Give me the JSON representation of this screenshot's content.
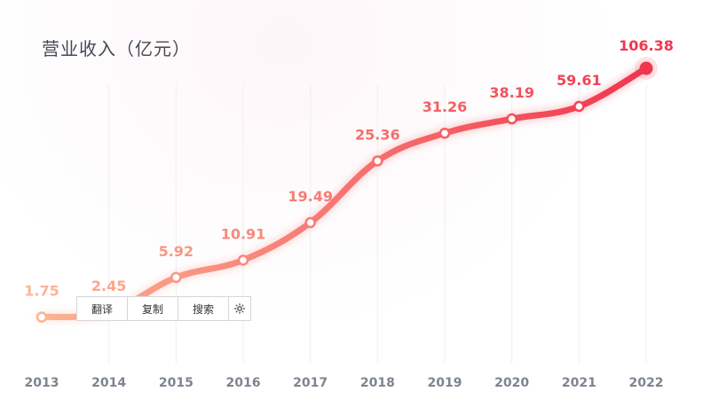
{
  "chart_data": {
    "type": "line",
    "title": "营业收入（亿元）",
    "categories": [
      "2013",
      "2014",
      "2015",
      "2016",
      "2017",
      "2018",
      "2019",
      "2020",
      "2021",
      "2022"
    ],
    "values": [
      1.75,
      2.45,
      5.92,
      10.91,
      19.49,
      25.36,
      31.26,
      38.19,
      59.61,
      106.38
    ],
    "value_labels": [
      "1.75",
      "2.45",
      "5.92",
      "10.91",
      "19.49",
      "25.36",
      "31.26",
      "38.19",
      "59.61",
      "106.38"
    ],
    "xlabel": "",
    "ylabel": "",
    "grid": "vertical",
    "legend": "none",
    "colors": {
      "start": "#fcb394",
      "end": "#f0364e",
      "axis_text": "#7d8491",
      "title": "#444a55"
    }
  },
  "toolbar": {
    "translate_label": "翻译",
    "copy_label": "复制",
    "search_label": "搜索",
    "settings_icon": "gear-icon"
  }
}
